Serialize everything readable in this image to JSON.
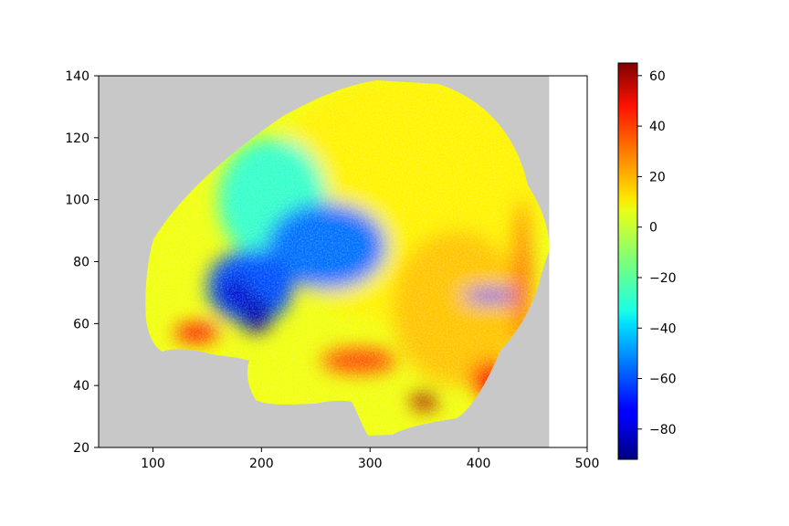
{
  "chart_data": {
    "type": "heatmap",
    "title": "",
    "xlabel": "",
    "ylabel": "",
    "xlim": [
      50,
      500
    ],
    "ylim": [
      20,
      140
    ],
    "xticks": [
      100,
      200,
      300,
      400,
      500
    ],
    "yticks": [
      20,
      40,
      60,
      80,
      100,
      120,
      140
    ],
    "data_extent": [
      50,
      465
    ],
    "background_color": "#c8c8c8",
    "colormap": "jet",
    "colorbar": {
      "range": [
        -92,
        65
      ],
      "ticks": [
        60,
        40,
        20,
        0,
        -20,
        -40,
        -60,
        -80
      ],
      "placement": "right"
    },
    "regions": [
      {
        "cx": 330,
        "cy": 100,
        "rx": 130,
        "ry": 40,
        "value": 8
      },
      {
        "cx": 380,
        "cy": 65,
        "rx": 60,
        "ry": 25,
        "value": 15
      },
      {
        "cx": 210,
        "cy": 100,
        "rx": 50,
        "ry": 20,
        "value": -25
      },
      {
        "cx": 260,
        "cy": 85,
        "rx": 55,
        "ry": 14,
        "value": -55
      },
      {
        "cx": 190,
        "cy": 72,
        "rx": 40,
        "ry": 12,
        "value": -60
      },
      {
        "cx": 195,
        "cy": 63,
        "rx": 15,
        "ry": 6,
        "value": -85
      },
      {
        "cx": 175,
        "cy": 70,
        "rx": 15,
        "ry": 5,
        "value": -80
      },
      {
        "cx": 412,
        "cy": 69,
        "rx": 26,
        "ry": 2,
        "value": -70
      },
      {
        "cx": 140,
        "cy": 57,
        "rx": 20,
        "ry": 3,
        "value": 45
      },
      {
        "cx": 350,
        "cy": 35,
        "rx": 12,
        "ry": 3,
        "value": 60
      },
      {
        "cx": 412,
        "cy": 42,
        "rx": 20,
        "ry": 6,
        "value": 42
      },
      {
        "cx": 440,
        "cy": 75,
        "rx": 8,
        "ry": 25,
        "value": 30
      },
      {
        "cx": 290,
        "cy": 48,
        "rx": 35,
        "ry": 4,
        "value": 35
      }
    ]
  }
}
